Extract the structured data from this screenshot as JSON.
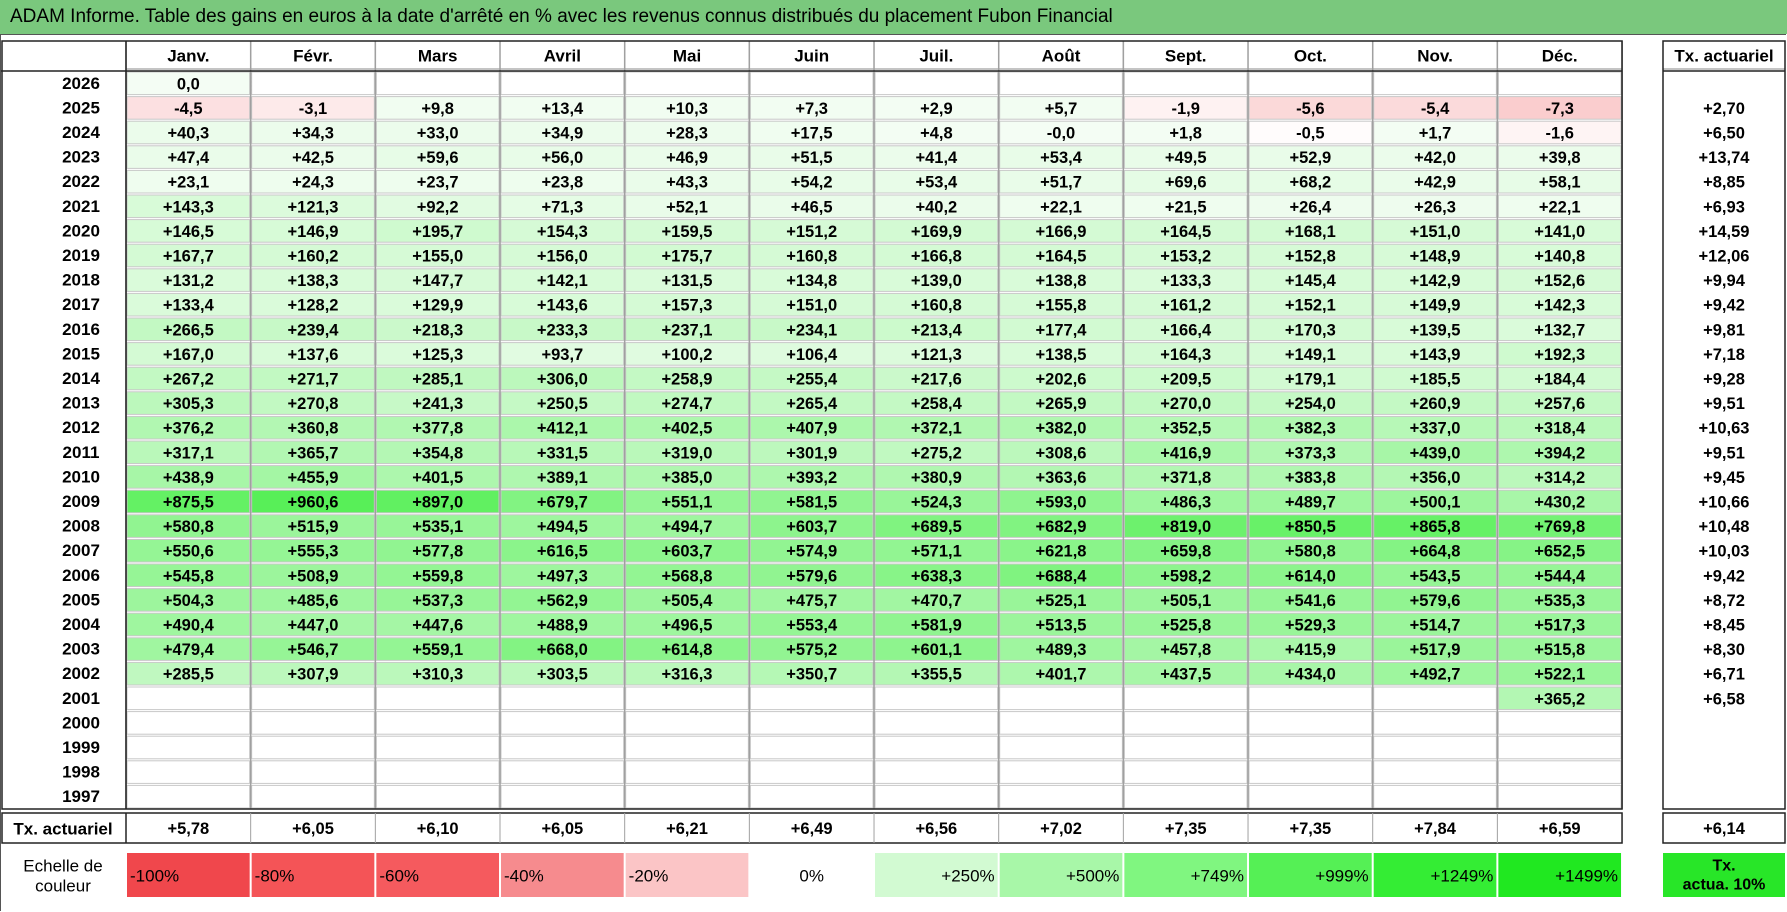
{
  "title": "ADAM Informe. Table des gains en euros à la date d'arrêté en % avec les revenus connus distribués du placement Fubon Financial",
  "months": [
    "Janv.",
    "Févr.",
    "Mars",
    "Avril",
    "Mai",
    "Juin",
    "Juil.",
    "Août",
    "Sept.",
    "Oct.",
    "Nov.",
    "Déc."
  ],
  "tx_header": "Tx. actuariel",
  "rows": [
    {
      "year": "2026",
      "v": [
        "0,0",
        "",
        "",
        "",
        "",
        "",
        "",
        "",
        "",
        "",
        "",
        ""
      ],
      "tx": ""
    },
    {
      "year": "2025",
      "v": [
        "-4,5",
        "-3,1",
        "+9,8",
        "+13,4",
        "+10,3",
        "+7,3",
        "+2,9",
        "+5,7",
        "-1,9",
        "-5,6",
        "-5,4",
        "-7,3"
      ],
      "tx": "+2,70"
    },
    {
      "year": "2024",
      "v": [
        "+40,3",
        "+34,3",
        "+33,0",
        "+34,9",
        "+28,3",
        "+17,5",
        "+4,8",
        "-0,0",
        "+1,8",
        "-0,5",
        "+1,7",
        "-1,6"
      ],
      "tx": "+6,50"
    },
    {
      "year": "2023",
      "v": [
        "+47,4",
        "+42,5",
        "+59,6",
        "+56,0",
        "+46,9",
        "+51,5",
        "+41,4",
        "+53,4",
        "+49,5",
        "+52,9",
        "+42,0",
        "+39,8"
      ],
      "tx": "+13,74"
    },
    {
      "year": "2022",
      "v": [
        "+23,1",
        "+24,3",
        "+23,7",
        "+23,8",
        "+43,3",
        "+54,2",
        "+53,4",
        "+51,7",
        "+69,6",
        "+68,2",
        "+42,9",
        "+58,1"
      ],
      "tx": "+8,85"
    },
    {
      "year": "2021",
      "v": [
        "+143,3",
        "+121,3",
        "+92,2",
        "+71,3",
        "+52,1",
        "+46,5",
        "+40,2",
        "+22,1",
        "+21,5",
        "+26,4",
        "+26,3",
        "+22,1"
      ],
      "tx": "+6,93"
    },
    {
      "year": "2020",
      "v": [
        "+146,5",
        "+146,9",
        "+195,7",
        "+154,3",
        "+159,5",
        "+151,2",
        "+169,9",
        "+166,9",
        "+164,5",
        "+168,1",
        "+151,0",
        "+141,0"
      ],
      "tx": "+14,59"
    },
    {
      "year": "2019",
      "v": [
        "+167,7",
        "+160,2",
        "+155,0",
        "+156,0",
        "+175,7",
        "+160,8",
        "+166,8",
        "+164,5",
        "+153,2",
        "+152,8",
        "+148,9",
        "+140,8"
      ],
      "tx": "+12,06"
    },
    {
      "year": "2018",
      "v": [
        "+131,2",
        "+138,3",
        "+147,7",
        "+142,1",
        "+131,5",
        "+134,8",
        "+139,0",
        "+138,8",
        "+133,3",
        "+145,4",
        "+142,9",
        "+152,6"
      ],
      "tx": "+9,94"
    },
    {
      "year": "2017",
      "v": [
        "+133,4",
        "+128,2",
        "+129,9",
        "+143,6",
        "+157,3",
        "+151,0",
        "+160,8",
        "+155,8",
        "+161,2",
        "+152,1",
        "+149,9",
        "+142,3"
      ],
      "tx": "+9,42"
    },
    {
      "year": "2016",
      "v": [
        "+266,5",
        "+239,4",
        "+218,3",
        "+233,3",
        "+237,1",
        "+234,1",
        "+213,4",
        "+177,4",
        "+166,4",
        "+170,3",
        "+139,5",
        "+132,7"
      ],
      "tx": "+9,81"
    },
    {
      "year": "2015",
      "v": [
        "+167,0",
        "+137,6",
        "+125,3",
        "+93,7",
        "+100,2",
        "+106,4",
        "+121,3",
        "+138,5",
        "+164,3",
        "+149,1",
        "+143,9",
        "+192,3"
      ],
      "tx": "+7,18"
    },
    {
      "year": "2014",
      "v": [
        "+267,2",
        "+271,7",
        "+285,1",
        "+306,0",
        "+258,9",
        "+255,4",
        "+217,6",
        "+202,6",
        "+209,5",
        "+179,1",
        "+185,5",
        "+184,4"
      ],
      "tx": "+9,28"
    },
    {
      "year": "2013",
      "v": [
        "+305,3",
        "+270,8",
        "+241,3",
        "+250,5",
        "+274,7",
        "+265,4",
        "+258,4",
        "+265,9",
        "+270,0",
        "+254,0",
        "+260,9",
        "+257,6"
      ],
      "tx": "+9,51"
    },
    {
      "year": "2012",
      "v": [
        "+376,2",
        "+360,8",
        "+377,8",
        "+412,1",
        "+402,5",
        "+407,9",
        "+372,1",
        "+382,0",
        "+352,5",
        "+382,3",
        "+337,0",
        "+318,4"
      ],
      "tx": "+10,63"
    },
    {
      "year": "2011",
      "v": [
        "+317,1",
        "+365,7",
        "+354,8",
        "+331,5",
        "+319,0",
        "+301,9",
        "+275,2",
        "+308,6",
        "+416,9",
        "+373,3",
        "+439,0",
        "+394,2"
      ],
      "tx": "+9,51"
    },
    {
      "year": "2010",
      "v": [
        "+438,9",
        "+455,9",
        "+401,5",
        "+389,1",
        "+385,0",
        "+393,2",
        "+380,9",
        "+363,6",
        "+371,8",
        "+383,8",
        "+356,0",
        "+314,2"
      ],
      "tx": "+9,45"
    },
    {
      "year": "2009",
      "v": [
        "+875,5",
        "+960,6",
        "+897,0",
        "+679,7",
        "+551,1",
        "+581,5",
        "+524,3",
        "+593,0",
        "+486,3",
        "+489,7",
        "+500,1",
        "+430,2"
      ],
      "tx": "+10,66"
    },
    {
      "year": "2008",
      "v": [
        "+580,8",
        "+515,9",
        "+535,1",
        "+494,5",
        "+494,7",
        "+603,7",
        "+689,5",
        "+682,9",
        "+819,0",
        "+850,5",
        "+865,8",
        "+769,8"
      ],
      "tx": "+10,48"
    },
    {
      "year": "2007",
      "v": [
        "+550,6",
        "+555,3",
        "+577,8",
        "+616,5",
        "+603,7",
        "+574,9",
        "+571,1",
        "+621,8",
        "+659,8",
        "+580,8",
        "+664,8",
        "+652,5"
      ],
      "tx": "+10,03"
    },
    {
      "year": "2006",
      "v": [
        "+545,8",
        "+508,9",
        "+559,8",
        "+497,3",
        "+568,8",
        "+579,6",
        "+638,3",
        "+688,4",
        "+598,2",
        "+614,0",
        "+543,5",
        "+544,4"
      ],
      "tx": "+9,42"
    },
    {
      "year": "2005",
      "v": [
        "+504,3",
        "+485,6",
        "+537,3",
        "+562,9",
        "+505,4",
        "+475,7",
        "+470,7",
        "+525,1",
        "+505,1",
        "+541,6",
        "+579,6",
        "+535,3"
      ],
      "tx": "+8,72"
    },
    {
      "year": "2004",
      "v": [
        "+490,4",
        "+447,0",
        "+447,6",
        "+488,9",
        "+496,5",
        "+553,4",
        "+581,9",
        "+513,5",
        "+525,8",
        "+529,3",
        "+514,7",
        "+517,3"
      ],
      "tx": "+8,45"
    },
    {
      "year": "2003",
      "v": [
        "+479,4",
        "+546,7",
        "+559,1",
        "+668,0",
        "+614,8",
        "+575,2",
        "+601,1",
        "+489,3",
        "+457,8",
        "+415,9",
        "+517,9",
        "+515,8"
      ],
      "tx": "+8,30"
    },
    {
      "year": "2002",
      "v": [
        "+285,5",
        "+307,9",
        "+310,3",
        "+303,5",
        "+316,3",
        "+350,7",
        "+355,5",
        "+401,7",
        "+437,5",
        "+434,0",
        "+492,7",
        "+522,1"
      ],
      "tx": "+6,71"
    },
    {
      "year": "2001",
      "v": [
        "",
        "",
        "",
        "",
        "",
        "",
        "",
        "",
        "",
        "",
        "",
        "+365,2"
      ],
      "tx": "+6,58"
    },
    {
      "year": "2000",
      "v": [
        "",
        "",
        "",
        "",
        "",
        "",
        "",
        "",
        "",
        "",
        "",
        ""
      ],
      "tx": ""
    },
    {
      "year": "1999",
      "v": [
        "",
        "",
        "",
        "",
        "",
        "",
        "",
        "",
        "",
        "",
        "",
        ""
      ],
      "tx": ""
    },
    {
      "year": "1998",
      "v": [
        "",
        "",
        "",
        "",
        "",
        "",
        "",
        "",
        "",
        "",
        "",
        ""
      ],
      "tx": ""
    },
    {
      "year": "1997",
      "v": [
        "",
        "",
        "",
        "",
        "",
        "",
        "",
        "",
        "",
        "",
        "",
        ""
      ],
      "tx": ""
    }
  ],
  "footer": {
    "label": "Tx. actuariel",
    "values": [
      "+5,78",
      "+6,05",
      "+6,10",
      "+6,05",
      "+6,21",
      "+6,49",
      "+6,56",
      "+7,02",
      "+7,35",
      "+7,35",
      "+7,84",
      "+6,59"
    ],
    "tx": "+6,14"
  },
  "scale": {
    "label_line1": "Echelle de",
    "label_line2": "couleur",
    "cells": [
      {
        "label": "-100%",
        "align": "left",
        "color": "#f0474c"
      },
      {
        "label": "-80%",
        "align": "left",
        "color": "#f45457"
      },
      {
        "label": "-60%",
        "align": "left",
        "color": "#f55a5e"
      },
      {
        "label": "-40%",
        "align": "left",
        "color": "#f68b8e"
      },
      {
        "label": "-20%",
        "align": "left",
        "color": "#fbc5c6"
      },
      {
        "label": "0%",
        "align": "center",
        "color": "#ffffff"
      },
      {
        "label": "+250%",
        "align": "right",
        "color": "#d2fad2"
      },
      {
        "label": "+500%",
        "align": "right",
        "color": "#a8f7a8"
      },
      {
        "label": "+749%",
        "align": "right",
        "color": "#80f680"
      },
      {
        "label": "+999%",
        "align": "right",
        "color": "#55f055"
      },
      {
        "label": "+1249%",
        "align": "right",
        "color": "#34ed34"
      },
      {
        "label": "+1499%",
        "align": "right",
        "color": "#20e820"
      }
    ],
    "tx_line1": "Tx.",
    "tx_line2": "actua. 10%",
    "tx_color": "#28e628"
  }
}
